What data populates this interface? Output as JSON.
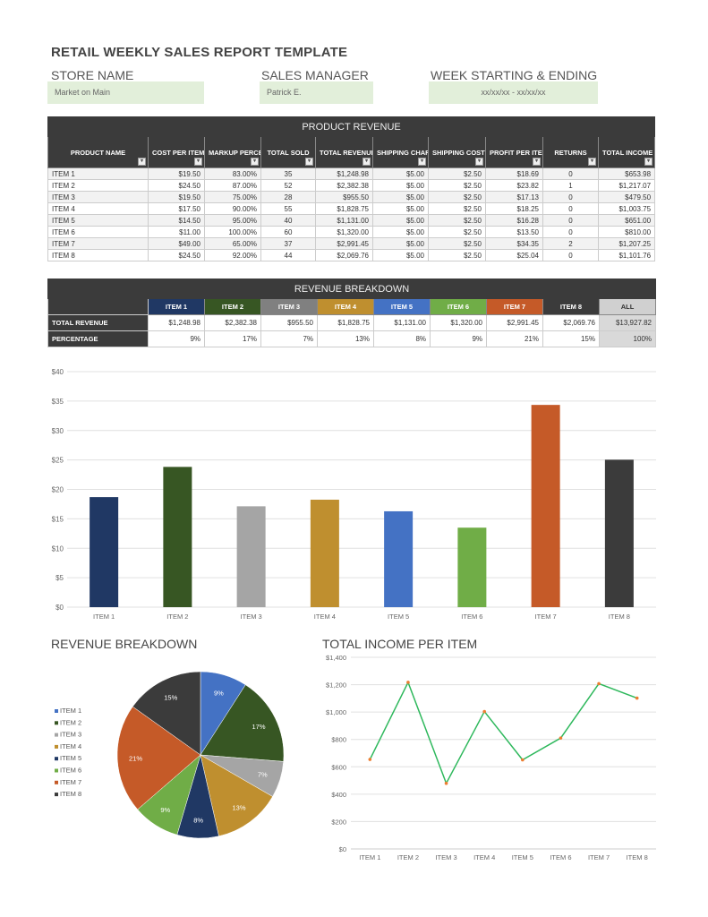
{
  "title": "RETAIL WEEKLY SALES REPORT TEMPLATE",
  "store": {
    "label": "STORE NAME",
    "value": "Market on Main"
  },
  "manager": {
    "label": "SALES MANAGER",
    "value": "Patrick E."
  },
  "week": {
    "label": "WEEK STARTING & ENDING",
    "value": "xx/xx/xx - xx/xx/xx"
  },
  "product_revenue": {
    "title": "PRODUCT REVENUE",
    "headers": [
      "PRODUCT NAME",
      "COST PER ITEM",
      "MARKUP PERCENTAGE",
      "TOTAL SOLD",
      "TOTAL REVENUE",
      "SHIPPING CHARGE PER ITEM",
      "SHIPPING COST PER ITEM",
      "PROFIT PER ITEM",
      "RETURNS",
      "TOTAL INCOME"
    ],
    "rows": [
      [
        "ITEM 1",
        "$19.50",
        "83.00%",
        "35",
        "$1,248.98",
        "$5.00",
        "$2.50",
        "$18.69",
        "0",
        "$653.98"
      ],
      [
        "ITEM 2",
        "$24.50",
        "87.00%",
        "52",
        "$2,382.38",
        "$5.00",
        "$2.50",
        "$23.82",
        "1",
        "$1,217.07"
      ],
      [
        "ITEM 3",
        "$19.50",
        "75.00%",
        "28",
        "$955.50",
        "$5.00",
        "$2.50",
        "$17.13",
        "0",
        "$479.50"
      ],
      [
        "ITEM 4",
        "$17.50",
        "90.00%",
        "55",
        "$1,828.75",
        "$5.00",
        "$2.50",
        "$18.25",
        "0",
        "$1,003.75"
      ],
      [
        "ITEM 5",
        "$14.50",
        "95.00%",
        "40",
        "$1,131.00",
        "$5.00",
        "$2.50",
        "$16.28",
        "0",
        "$651.00"
      ],
      [
        "ITEM 6",
        "$11.00",
        "100.00%",
        "60",
        "$1,320.00",
        "$5.00",
        "$2.50",
        "$13.50",
        "0",
        "$810.00"
      ],
      [
        "ITEM 7",
        "$49.00",
        "65.00%",
        "37",
        "$2,991.45",
        "$5.00",
        "$2.50",
        "$34.35",
        "2",
        "$1,207.25"
      ],
      [
        "ITEM 8",
        "$24.50",
        "92.00%",
        "44",
        "$2,069.76",
        "$5.00",
        "$2.50",
        "$25.04",
        "0",
        "$1,101.76"
      ]
    ]
  },
  "revenue_breakdown": {
    "title": "REVENUE BREAKDOWN",
    "items": [
      "ITEM 1",
      "ITEM 2",
      "ITEM 3",
      "ITEM 4",
      "ITEM 5",
      "ITEM 6",
      "ITEM 7",
      "ITEM 8",
      "ALL"
    ],
    "header_colors": [
      "#203864",
      "#375623",
      "#808080",
      "#bf8f2f",
      "#4472c4",
      "#70ad47",
      "#c55a28",
      "#3b3b3b",
      "#d0d0d0"
    ],
    "rows": [
      {
        "label": "TOTAL REVENUE",
        "values": [
          "$1,248.98",
          "$2,382.38",
          "$955.50",
          "$1,828.75",
          "$1,131.00",
          "$1,320.00",
          "$2,991.45",
          "$2,069.76",
          "$13,927.82"
        ]
      },
      {
        "label": "PERCENTAGE",
        "values": [
          "9%",
          "17%",
          "7%",
          "13%",
          "8%",
          "9%",
          "21%",
          "15%",
          "100%"
        ]
      }
    ]
  },
  "chart_data": [
    {
      "type": "bar",
      "categories": [
        "ITEM 1",
        "ITEM 2",
        "ITEM 3",
        "ITEM 4",
        "ITEM 5",
        "ITEM 6",
        "ITEM 7",
        "ITEM 8"
      ],
      "values": [
        18.69,
        23.82,
        17.13,
        18.25,
        16.28,
        13.5,
        34.35,
        25.04
      ],
      "colors": [
        "#203864",
        "#375623",
        "#a5a5a5",
        "#bf8f2f",
        "#4472c4",
        "#70ad47",
        "#c55a28",
        "#3b3b3b"
      ],
      "ylim": [
        0,
        40
      ],
      "yticks": [
        "$0",
        "$5",
        "$10",
        "$15",
        "$20",
        "$25",
        "$30",
        "$35",
        "$40"
      ],
      "grid": true
    },
    {
      "type": "pie",
      "title": "REVENUE BREAKDOWN",
      "categories": [
        "ITEM 1",
        "ITEM 2",
        "ITEM 3",
        "ITEM 4",
        "ITEM 5",
        "ITEM 6",
        "ITEM 7",
        "ITEM 8"
      ],
      "values": [
        9,
        17,
        7,
        13,
        8,
        9,
        21,
        15
      ],
      "labels": [
        "9%",
        "17%",
        "7%",
        "13%",
        "8%",
        "9%",
        "21%",
        "15%"
      ],
      "colors": [
        "#4472c4",
        "#375623",
        "#a5a5a5",
        "#bf8f2f",
        "#203864",
        "#70ad47",
        "#c55a28",
        "#3b3b3b"
      ],
      "legend": "left"
    },
    {
      "type": "line",
      "title": "TOTAL INCOME PER ITEM",
      "categories": [
        "ITEM 1",
        "ITEM 2",
        "ITEM 3",
        "ITEM 4",
        "ITEM 5",
        "ITEM 6",
        "ITEM 7",
        "ITEM 8"
      ],
      "values": [
        653.98,
        1217.07,
        479.5,
        1003.75,
        651.0,
        810.0,
        1207.25,
        1101.76
      ],
      "ylim": [
        0,
        1400
      ],
      "yticks": [
        "$0",
        "$200",
        "$400",
        "$600",
        "$800",
        "$1,000",
        "$1,200",
        "$1,400"
      ],
      "line_color": "#2eb85c",
      "marker_color": "#ed7d31",
      "grid": true
    }
  ]
}
